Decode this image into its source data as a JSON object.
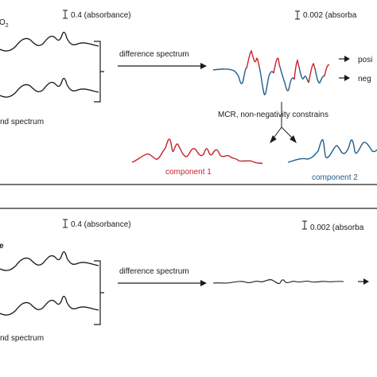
{
  "colors": {
    "frame": "#1a1a1a",
    "trace": "#1a1a1a",
    "positive": "#d11f26",
    "negative": "#1f5d8c",
    "component1": "#c8222a",
    "component2": "#1f5d8c"
  },
  "top_panel": {
    "label_left": "O",
    "label_sub": "2",
    "scale_left": "0.4 (absorbance)",
    "scale_right": "0.002 (absorba",
    "arrow_label": "difference spectrum",
    "legend_positive": "posi",
    "legend_negative": "neg",
    "background_label": "nd spectrum",
    "mcr_label": "MCR, non-negativity constrains",
    "component1_label": "component 1",
    "component2_label": "component 2"
  },
  "bottom_panel": {
    "label_left": "e",
    "scale_left": "0.4 (absorbance)",
    "scale_right": "0.002 (absorba",
    "arrow_label": "difference spectrum",
    "background_label": "nd spectrum"
  }
}
